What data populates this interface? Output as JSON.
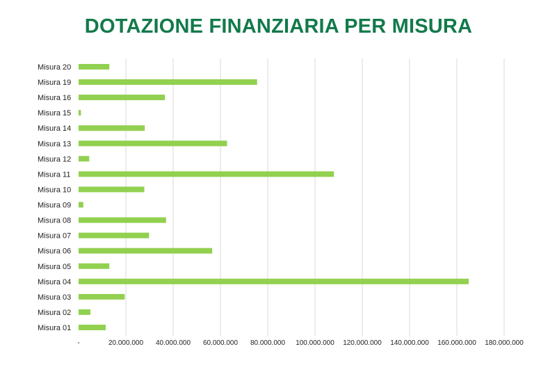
{
  "chart_data": {
    "type": "bar",
    "orientation": "horizontal",
    "title": "DOTAZIONE FINANZIARIA PER MISURA",
    "title_color": "#127a4a",
    "bar_color": "#92d050",
    "grid_color": "#d9d9d9",
    "grid": true,
    "legend": "none",
    "xlabel": "",
    "ylabel": "",
    "xlim": [
      0,
      180000000
    ],
    "x_ticks": [
      0,
      20000000,
      40000000,
      60000000,
      80000000,
      100000000,
      120000000,
      140000000,
      160000000,
      180000000
    ],
    "x_tick_labels": [
      "-",
      "20.000.000",
      "40.000.000",
      "60.000.000",
      "80.000.000",
      "100.000.000",
      "120.000.000",
      "140.000.000",
      "160.000.000",
      "180.000.000"
    ],
    "categories": [
      "Misura 01",
      "Misura 02",
      "Misura 03",
      "Misura 04",
      "Misura 05",
      "Misura 06",
      "Misura 07",
      "Misura 08",
      "Misura 09",
      "Misura 10",
      "Misura 11",
      "Misura 12",
      "Misura 13",
      "Misura 14",
      "Misura 15",
      "Misura 16",
      "Misura 19",
      "Misura 20"
    ],
    "values": [
      11500000,
      5000000,
      19500000,
      165000000,
      13000000,
      56500000,
      29800000,
      37000000,
      2000000,
      27800000,
      108000000,
      4500000,
      62800000,
      28000000,
      1000000,
      36500000,
      75500000,
      13000000
    ]
  }
}
